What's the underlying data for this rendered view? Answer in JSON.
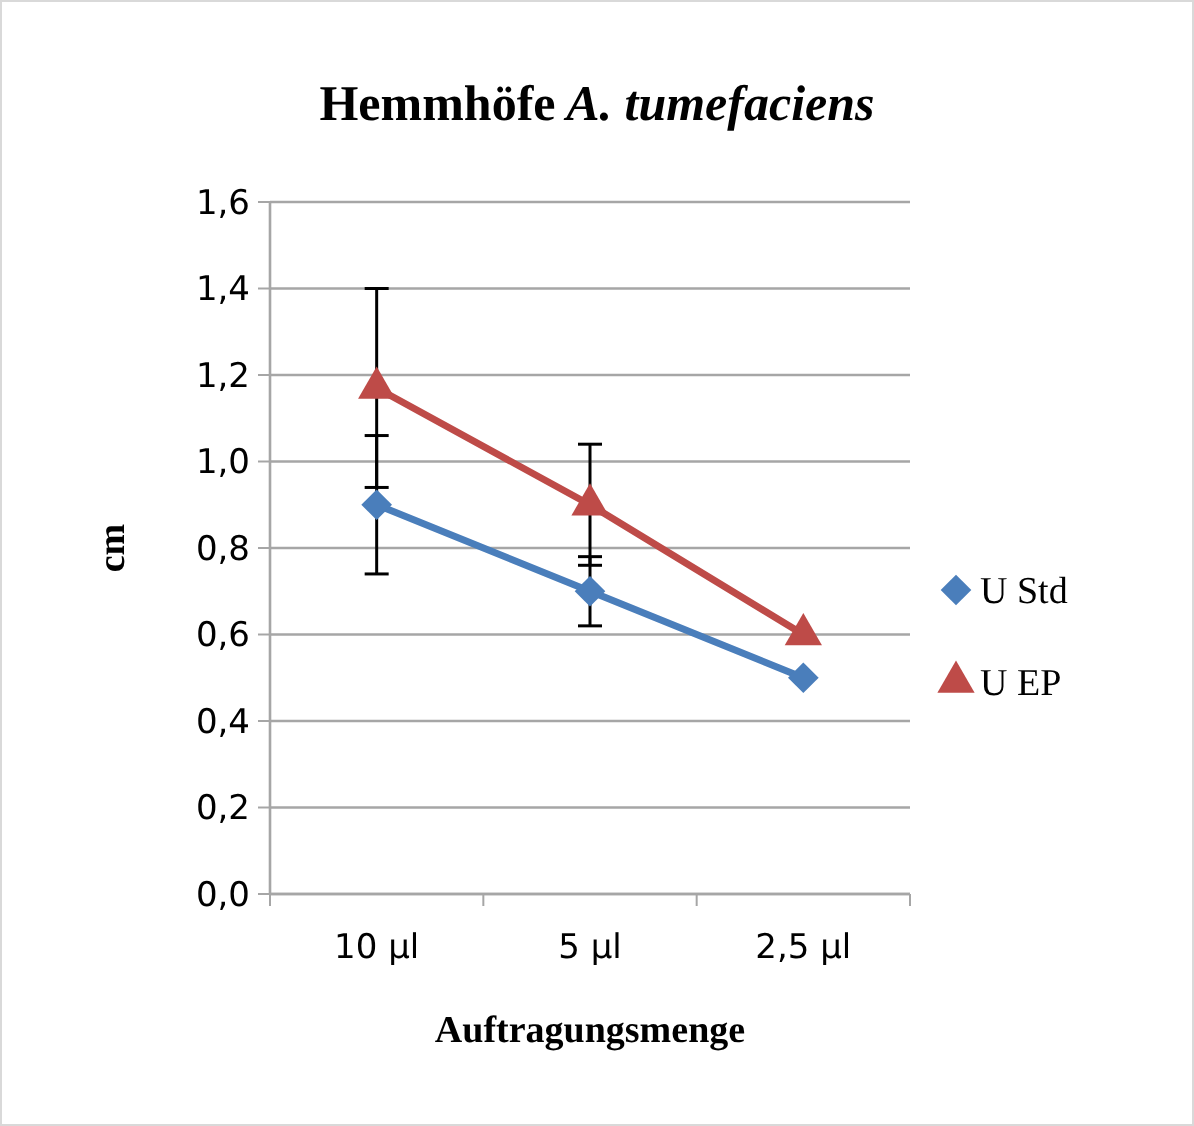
{
  "chart_data": {
    "type": "line",
    "title": "Hemmhöfe A. tumefaciens",
    "xlabel": "Auftragungsmenge",
    "ylabel": "cm",
    "categories": [
      "10 µl",
      "5 µl",
      "2,5 µl"
    ],
    "series": [
      {
        "name": "U Std",
        "color": "#4a7ebb",
        "marker": "diamond",
        "values": [
          0.9,
          0.7,
          0.5
        ],
        "errors": [
          0.16,
          0.08,
          null
        ]
      },
      {
        "name": "U EP",
        "color": "#be4b48",
        "marker": "triangle",
        "values": [
          1.17,
          0.9,
          0.6
        ],
        "errors": [
          0.23,
          0.14,
          null
        ]
      }
    ],
    "ylim": [
      0,
      1.6
    ],
    "yticks": [
      {
        "value": 0,
        "label": "0,0"
      },
      {
        "value": 0.2,
        "label": "0,2"
      },
      {
        "value": 0.4,
        "label": "0,4"
      },
      {
        "value": 0.6,
        "label": "0,6"
      },
      {
        "value": 0.8,
        "label": "0,8"
      },
      {
        "value": 1,
        "label": "1,0"
      },
      {
        "value": 1.2,
        "label": "1,2"
      },
      {
        "value": 1.4,
        "label": "1,4"
      },
      {
        "value": 1.6,
        "label": "1,6"
      }
    ],
    "grid": "y",
    "legend": "right"
  }
}
